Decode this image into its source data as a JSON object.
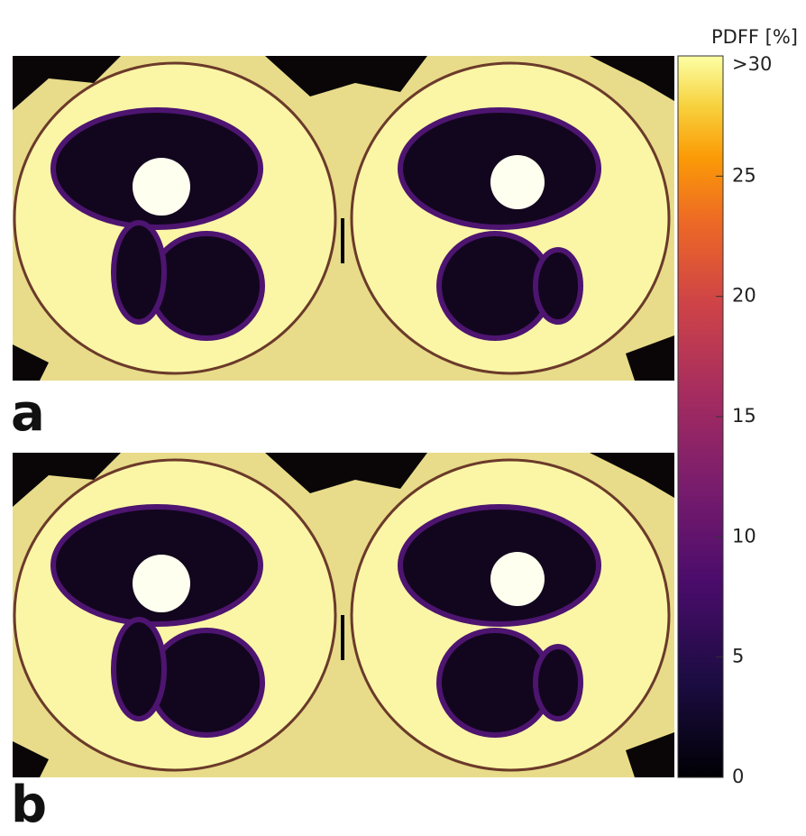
{
  "colorbar": {
    "title": "PDFF [%]",
    "lim": [
      0,
      30
    ],
    "ticks": [
      0,
      5,
      10,
      15,
      20,
      25,
      {
        "value": 30,
        "label": ">30"
      }
    ]
  },
  "panels": [
    {
      "label": "a"
    },
    {
      "label": "b"
    }
  ]
}
